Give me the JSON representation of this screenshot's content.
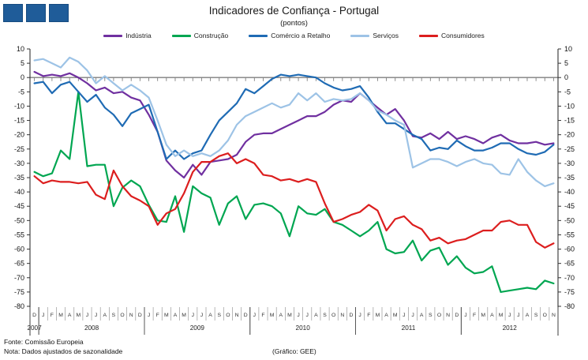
{
  "title": "Indicadores de Confiança - Portugal",
  "subtitle": "(pontos)",
  "footer": {
    "source": "Fonte: Comissão Europeia",
    "note": "Nota: Dados ajustados de sazonalidade",
    "credit": "(Gráfico:  GEE)"
  },
  "logo": {
    "square_color": "#1F5C99",
    "square_count": 3
  },
  "chart_data": {
    "type": "line",
    "title": "Indicadores de Confiança - Portugal",
    "subtitle": "(pontos)",
    "ylim": [
      -80,
      10
    ],
    "yticks": [
      10,
      5,
      0,
      -5,
      -10,
      -15,
      -20,
      -25,
      -30,
      -35,
      -40,
      -45,
      -50,
      -55,
      -60,
      -65,
      -70,
      -75,
      -80
    ],
    "grid": "zero-line-only",
    "legend_position": "top",
    "x_month_labels": [
      "D",
      "J",
      "F",
      "M",
      "A",
      "M",
      "J",
      "J",
      "A",
      "S",
      "O",
      "N",
      "D",
      "J",
      "F",
      "M",
      "A",
      "M",
      "J",
      "J",
      "A",
      "S",
      "O",
      "N",
      "D",
      "J",
      "F",
      "M",
      "A",
      "M",
      "J",
      "J",
      "A",
      "S",
      "O",
      "N",
      "D",
      "J",
      "F",
      "M",
      "A",
      "M",
      "J",
      "J",
      "A",
      "S",
      "O",
      "N",
      "D",
      "J",
      "F",
      "M",
      "A",
      "M",
      "J",
      "J",
      "A",
      "S",
      "O",
      "N"
    ],
    "x_years": [
      {
        "label": "2007",
        "from": 0,
        "to": 0
      },
      {
        "label": "2008",
        "from": 1,
        "to": 12
      },
      {
        "label": "2009",
        "from": 13,
        "to": 24
      },
      {
        "label": "2010",
        "from": 25,
        "to": 36
      },
      {
        "label": "2011",
        "from": 37,
        "to": 48
      },
      {
        "label": "2012",
        "from": 49,
        "to": 59
      }
    ],
    "axis_color": "#333333",
    "zero_line_color": "#7f7f7f",
    "series": [
      {
        "key": "industria",
        "name": "Indústria",
        "color": "#7030A0",
        "values": [
          2,
          0.5,
          1,
          0.5,
          1.5,
          0,
          -2,
          -4.5,
          -3.5,
          -5.5,
          -5,
          -7,
          -8,
          -13,
          -19,
          -29,
          -32.5,
          -35,
          -30.5,
          -34,
          -29.5,
          -29,
          -28.5,
          -27,
          -22.5,
          -20,
          -19.5,
          -19.5,
          -18,
          -16.5,
          -15,
          -13.5,
          -13.5,
          -12,
          -9.5,
          -8,
          -8.5,
          -5.5,
          -8,
          -10.5,
          -13,
          -11,
          -15,
          -20.5,
          -21,
          -19.5,
          -21.5,
          -19,
          -21.5,
          -20.5,
          -21.5,
          -23,
          -21,
          -20,
          -22,
          -23,
          -23,
          -22.5,
          -23.5,
          -23
        ]
      },
      {
        "key": "construcao",
        "name": "Construção",
        "color": "#00A651",
        "values": [
          -33,
          -34.5,
          -33.5,
          -25.5,
          -28.5,
          -5,
          -31,
          -30.5,
          -30.5,
          -45,
          -38.5,
          -36,
          -38,
          -44.5,
          -50,
          -50.5,
          -41.5,
          -54,
          -38,
          -40.5,
          -42,
          -51.5,
          -44,
          -41.5,
          -49.5,
          -44.5,
          -44,
          -45,
          -47.5,
          -55.5,
          -45,
          -47.5,
          -48,
          -46,
          -50.5,
          -51.5,
          -53.5,
          -55.5,
          -53.5,
          -50.5,
          -60,
          -61.5,
          -61,
          -57,
          -64,
          -60.5,
          -59.5,
          -65.5,
          -62.5,
          -66.5,
          -68.5,
          -68,
          -66,
          -75,
          -74.5,
          -74,
          -73.5,
          -74,
          -71,
          -72
        ]
      },
      {
        "key": "comercio_retalho",
        "name": "Comércio a Retalho",
        "color": "#1F6BB4",
        "values": [
          -2,
          -1.5,
          -5.5,
          -2.5,
          -1.5,
          -5,
          -8.5,
          -6,
          -10.5,
          -13,
          -17,
          -12.5,
          -11,
          -9.5,
          -19,
          -28.5,
          -25.5,
          -28.5,
          -26.5,
          -25.5,
          -20,
          -15,
          -12,
          -9,
          -4,
          -5.5,
          -3,
          -0.5,
          1,
          0.5,
          1,
          0.5,
          0,
          -2,
          -3.5,
          -4.5,
          -4,
          -3,
          -7,
          -12,
          -16,
          -16,
          -18,
          -20,
          -21.5,
          -25.5,
          -24.5,
          -25,
          -22,
          -24,
          -25.5,
          -25.5,
          -24.5,
          -23,
          -23,
          -25,
          -26.5,
          -27,
          -26,
          -23.5
        ]
      },
      {
        "key": "servicos",
        "name": "Serviços",
        "color": "#9DC3E6",
        "values": [
          6,
          6.5,
          5,
          3.5,
          7,
          5.5,
          2.5,
          -2,
          0.5,
          -2,
          -4.5,
          -2.5,
          -4.5,
          -7,
          -15,
          -23.5,
          -27.5,
          -25.5,
          -27.5,
          -26.5,
          -27.5,
          -25.5,
          -22,
          -16.5,
          -13.5,
          -12,
          -10.5,
          -9,
          -10.5,
          -9.5,
          -5.5,
          -8,
          -5.5,
          -8.5,
          -7.5,
          -8,
          -7.5,
          -5.5,
          -8,
          -11.5,
          -13,
          -15,
          -16.5,
          -31.5,
          -30,
          -28.5,
          -28.5,
          -29.5,
          -31,
          -29.5,
          -28.5,
          -30,
          -30.5,
          -33.5,
          -34,
          -28.5,
          -33,
          -36,
          -38,
          -37
        ]
      },
      {
        "key": "consumidores",
        "name": "Consumidores",
        "color": "#DC1E1E",
        "values": [
          -34.5,
          -37,
          -36,
          -36.5,
          -36.5,
          -37,
          -36.5,
          -41,
          -42.5,
          -32.5,
          -38,
          -41.5,
          -43,
          -45,
          -51.5,
          -47.5,
          -46,
          -40.5,
          -33,
          -29.5,
          -29.5,
          -27.5,
          -26.5,
          -30,
          -28.5,
          -30,
          -34,
          -34.5,
          -36,
          -35.5,
          -36.5,
          -35.5,
          -36.5,
          -44,
          -50.5,
          -49.5,
          -48,
          -47,
          -44.5,
          -46.5,
          -53.5,
          -49.5,
          -48.5,
          -51.5,
          -53,
          -57,
          -56,
          -58,
          -57,
          -56.5,
          -55,
          -53.5,
          -53.5,
          -50.5,
          -50,
          -51.5,
          -51.5,
          -57.5,
          -59.5,
          -58
        ]
      }
    ]
  }
}
